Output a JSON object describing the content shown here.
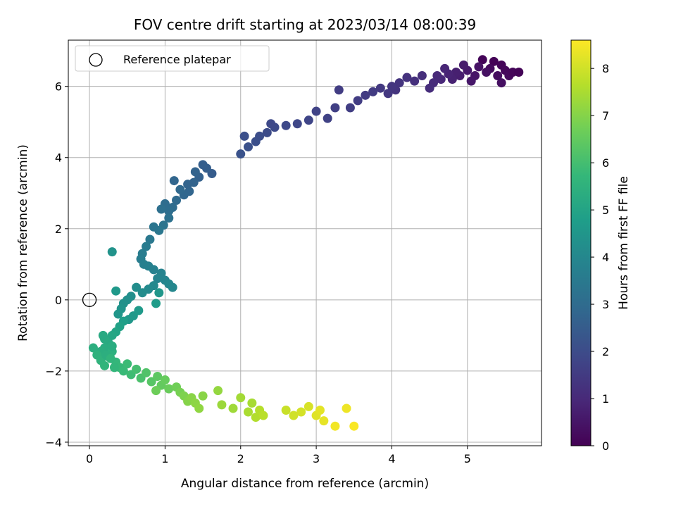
{
  "chart_data": {
    "type": "scatter",
    "title": "FOV centre drift starting at 2023/03/14 08:00:39",
    "xlabel": "Angular distance from reference (arcmin)",
    "ylabel": "Rotation from reference (arcmin)",
    "xlim": [
      -0.28,
      5.98
    ],
    "ylim": [
      -4.1,
      7.3
    ],
    "xticks": [
      0,
      1,
      2,
      3,
      4,
      5
    ],
    "yticks": [
      -4,
      -2,
      0,
      2,
      4,
      6
    ],
    "grid": true,
    "legend": {
      "placement": "top-left",
      "entries": [
        {
          "label": "Reference platepar",
          "marker": "open-circle"
        }
      ]
    },
    "reference_point": {
      "x": 0,
      "y": 0
    },
    "colorbar": {
      "label": "Hours from first FF file",
      "min": 0,
      "max": 8.6,
      "ticks": [
        0,
        1,
        2,
        3,
        4,
        5,
        6,
        7,
        8
      ],
      "colormap": "viridis"
    },
    "series": [
      {
        "points": [
          [
            5.35,
            6.7,
            0.05
          ],
          [
            5.45,
            6.6,
            0.1
          ],
          [
            5.5,
            6.45,
            0.15
          ],
          [
            5.55,
            6.3,
            0.2
          ],
          [
            5.6,
            6.4,
            0.12
          ],
          [
            5.68,
            6.4,
            0.08
          ],
          [
            5.2,
            6.75,
            0.1
          ],
          [
            5.3,
            6.5,
            0.25
          ],
          [
            5.4,
            6.3,
            0.3
          ],
          [
            5.45,
            6.1,
            0.35
          ],
          [
            5.25,
            6.4,
            0.4
          ],
          [
            5.15,
            6.55,
            0.45
          ],
          [
            5.1,
            6.3,
            0.5
          ],
          [
            5.05,
            6.15,
            0.55
          ],
          [
            5.0,
            6.45,
            0.6
          ],
          [
            4.95,
            6.6,
            0.65
          ],
          [
            4.9,
            6.3,
            0.7
          ],
          [
            4.85,
            6.4,
            0.75
          ],
          [
            4.8,
            6.2,
            0.8
          ],
          [
            4.75,
            6.35,
            0.85
          ],
          [
            4.7,
            6.5,
            0.9
          ],
          [
            4.65,
            6.2,
            0.95
          ],
          [
            4.6,
            6.3,
            1.0
          ],
          [
            4.55,
            6.1,
            1.05
          ],
          [
            4.5,
            5.95,
            1.1
          ],
          [
            4.4,
            6.3,
            1.15
          ],
          [
            4.3,
            6.15,
            1.2
          ],
          [
            4.2,
            6.25,
            1.25
          ],
          [
            4.1,
            6.1,
            1.3
          ],
          [
            4.05,
            5.9,
            1.3
          ],
          [
            4.0,
            6.0,
            1.35
          ],
          [
            3.95,
            5.8,
            1.4
          ],
          [
            3.85,
            5.95,
            1.45
          ],
          [
            3.75,
            5.85,
            1.5
          ],
          [
            3.65,
            5.75,
            1.5
          ],
          [
            3.55,
            5.6,
            1.55
          ],
          [
            3.45,
            5.4,
            1.6
          ],
          [
            3.3,
            5.9,
            1.55
          ],
          [
            3.25,
            5.4,
            1.65
          ],
          [
            3.15,
            5.1,
            1.7
          ],
          [
            3.0,
            5.3,
            1.75
          ],
          [
            2.9,
            5.05,
            1.8
          ],
          [
            2.75,
            4.95,
            1.85
          ],
          [
            2.6,
            4.9,
            1.9
          ],
          [
            2.45,
            4.85,
            1.95
          ],
          [
            2.4,
            4.95,
            1.9
          ],
          [
            2.35,
            4.7,
            2.0
          ],
          [
            2.25,
            4.6,
            2.05
          ],
          [
            2.2,
            4.45,
            2.1
          ],
          [
            2.1,
            4.3,
            2.15
          ],
          [
            2.05,
            4.6,
            2.1
          ],
          [
            2.0,
            4.1,
            2.2
          ],
          [
            1.62,
            3.55,
            2.5
          ],
          [
            1.55,
            3.7,
            2.55
          ],
          [
            1.5,
            3.8,
            2.6
          ],
          [
            1.45,
            3.45,
            2.65
          ],
          [
            1.4,
            3.6,
            2.7
          ],
          [
            1.38,
            3.3,
            2.75
          ],
          [
            1.32,
            3.05,
            2.8
          ],
          [
            1.3,
            3.25,
            2.75
          ],
          [
            1.25,
            2.95,
            2.85
          ],
          [
            1.2,
            3.1,
            2.9
          ],
          [
            1.15,
            2.8,
            2.95
          ],
          [
            1.1,
            2.6,
            3.0
          ],
          [
            1.05,
            2.5,
            3.1
          ],
          [
            1.0,
            2.7,
            3.05
          ],
          [
            0.95,
            2.55,
            3.15
          ],
          [
            1.12,
            3.35,
            2.8
          ],
          [
            1.05,
            2.3,
            3.2
          ],
          [
            0.98,
            2.1,
            3.3
          ],
          [
            0.92,
            1.95,
            3.4
          ],
          [
            0.85,
            2.05,
            3.35
          ],
          [
            0.8,
            1.7,
            3.45
          ],
          [
            0.75,
            1.5,
            3.55
          ],
          [
            0.7,
            1.3,
            3.6
          ],
          [
            0.68,
            1.15,
            3.65
          ],
          [
            0.72,
            1.0,
            3.7
          ],
          [
            0.78,
            0.95,
            3.75
          ],
          [
            0.85,
            0.85,
            3.8
          ],
          [
            0.95,
            0.75,
            3.85
          ],
          [
            1.0,
            0.55,
            3.9
          ],
          [
            1.05,
            0.45,
            3.95
          ],
          [
            1.1,
            0.35,
            4.0
          ],
          [
            0.9,
            0.6,
            3.9
          ],
          [
            0.85,
            0.4,
            4.05
          ],
          [
            0.78,
            0.3,
            4.1
          ],
          [
            0.7,
            0.2,
            4.15
          ],
          [
            0.62,
            0.35,
            4.2
          ],
          [
            0.55,
            0.1,
            4.25
          ],
          [
            0.5,
            0.0,
            4.3
          ],
          [
            0.45,
            -0.1,
            4.35
          ],
          [
            0.42,
            -0.25,
            4.45
          ],
          [
            0.38,
            -0.4,
            4.5
          ],
          [
            0.3,
            1.35,
            4.4
          ],
          [
            0.35,
            0.25,
            4.6
          ],
          [
            0.52,
            -0.55,
            4.55
          ],
          [
            0.58,
            -0.45,
            4.6
          ],
          [
            0.65,
            -0.3,
            4.65
          ],
          [
            0.88,
            -0.1,
            4.7
          ],
          [
            0.92,
            0.2,
            4.5
          ],
          [
            0.45,
            -0.6,
            4.8
          ],
          [
            0.4,
            -0.75,
            4.9
          ],
          [
            0.35,
            -0.9,
            5.0
          ],
          [
            0.3,
            -1.0,
            5.1
          ],
          [
            0.25,
            -1.2,
            5.2
          ],
          [
            0.2,
            -1.35,
            5.3
          ],
          [
            0.15,
            -1.45,
            5.35
          ],
          [
            0.05,
            -1.35,
            5.4
          ],
          [
            0.1,
            -1.55,
            5.5
          ],
          [
            0.15,
            -1.7,
            5.55
          ],
          [
            0.2,
            -1.85,
            5.6
          ],
          [
            0.25,
            -1.6,
            5.5
          ],
          [
            0.3,
            -1.45,
            5.45
          ],
          [
            0.35,
            -1.75,
            5.7
          ],
          [
            0.4,
            -1.9,
            5.75
          ],
          [
            0.45,
            -2.0,
            5.8
          ],
          [
            0.5,
            -1.8,
            5.85
          ],
          [
            0.55,
            -2.1,
            5.9
          ],
          [
            0.62,
            -1.95,
            6.0
          ],
          [
            0.68,
            -2.2,
            6.1
          ],
          [
            0.75,
            -2.05,
            6.2
          ],
          [
            0.82,
            -2.3,
            6.3
          ],
          [
            0.9,
            -2.15,
            6.4
          ],
          [
            0.95,
            -2.4,
            6.5
          ],
          [
            1.0,
            -2.25,
            6.55
          ],
          [
            1.05,
            -2.5,
            6.6
          ],
          [
            0.88,
            -2.55,
            6.65
          ],
          [
            1.15,
            -2.45,
            6.7
          ],
          [
            1.2,
            -2.6,
            6.8
          ],
          [
            1.25,
            -2.7,
            6.9
          ],
          [
            1.3,
            -2.85,
            7.0
          ],
          [
            1.35,
            -2.75,
            7.05
          ],
          [
            1.4,
            -2.9,
            7.1
          ],
          [
            1.45,
            -3.05,
            7.15
          ],
          [
            1.5,
            -2.7,
            7.05
          ],
          [
            1.7,
            -2.55,
            7.2
          ],
          [
            1.75,
            -2.95,
            7.3
          ],
          [
            1.9,
            -3.05,
            7.35
          ],
          [
            2.0,
            -2.75,
            7.4
          ],
          [
            2.1,
            -3.15,
            7.5
          ],
          [
            2.15,
            -2.9,
            7.45
          ],
          [
            2.2,
            -3.3,
            7.6
          ],
          [
            2.25,
            -3.1,
            7.65
          ],
          [
            2.3,
            -3.25,
            7.7
          ],
          [
            2.6,
            -3.1,
            7.9
          ],
          [
            2.7,
            -3.25,
            8.0
          ],
          [
            2.8,
            -3.15,
            8.05
          ],
          [
            2.9,
            -3.0,
            8.1
          ],
          [
            3.0,
            -3.25,
            8.2
          ],
          [
            3.05,
            -3.1,
            8.25
          ],
          [
            3.1,
            -3.4,
            8.3
          ],
          [
            3.25,
            -3.55,
            8.45
          ],
          [
            3.4,
            -3.05,
            8.4
          ],
          [
            3.5,
            -3.55,
            8.55
          ],
          [
            0.2,
            -1.1,
            5.25
          ],
          [
            0.3,
            -1.3,
            5.3
          ],
          [
            0.18,
            -1.0,
            5.2
          ],
          [
            0.22,
            -1.55,
            5.4
          ],
          [
            0.28,
            -1.65,
            5.6
          ],
          [
            0.33,
            -1.9,
            5.65
          ]
        ]
      }
    ]
  }
}
